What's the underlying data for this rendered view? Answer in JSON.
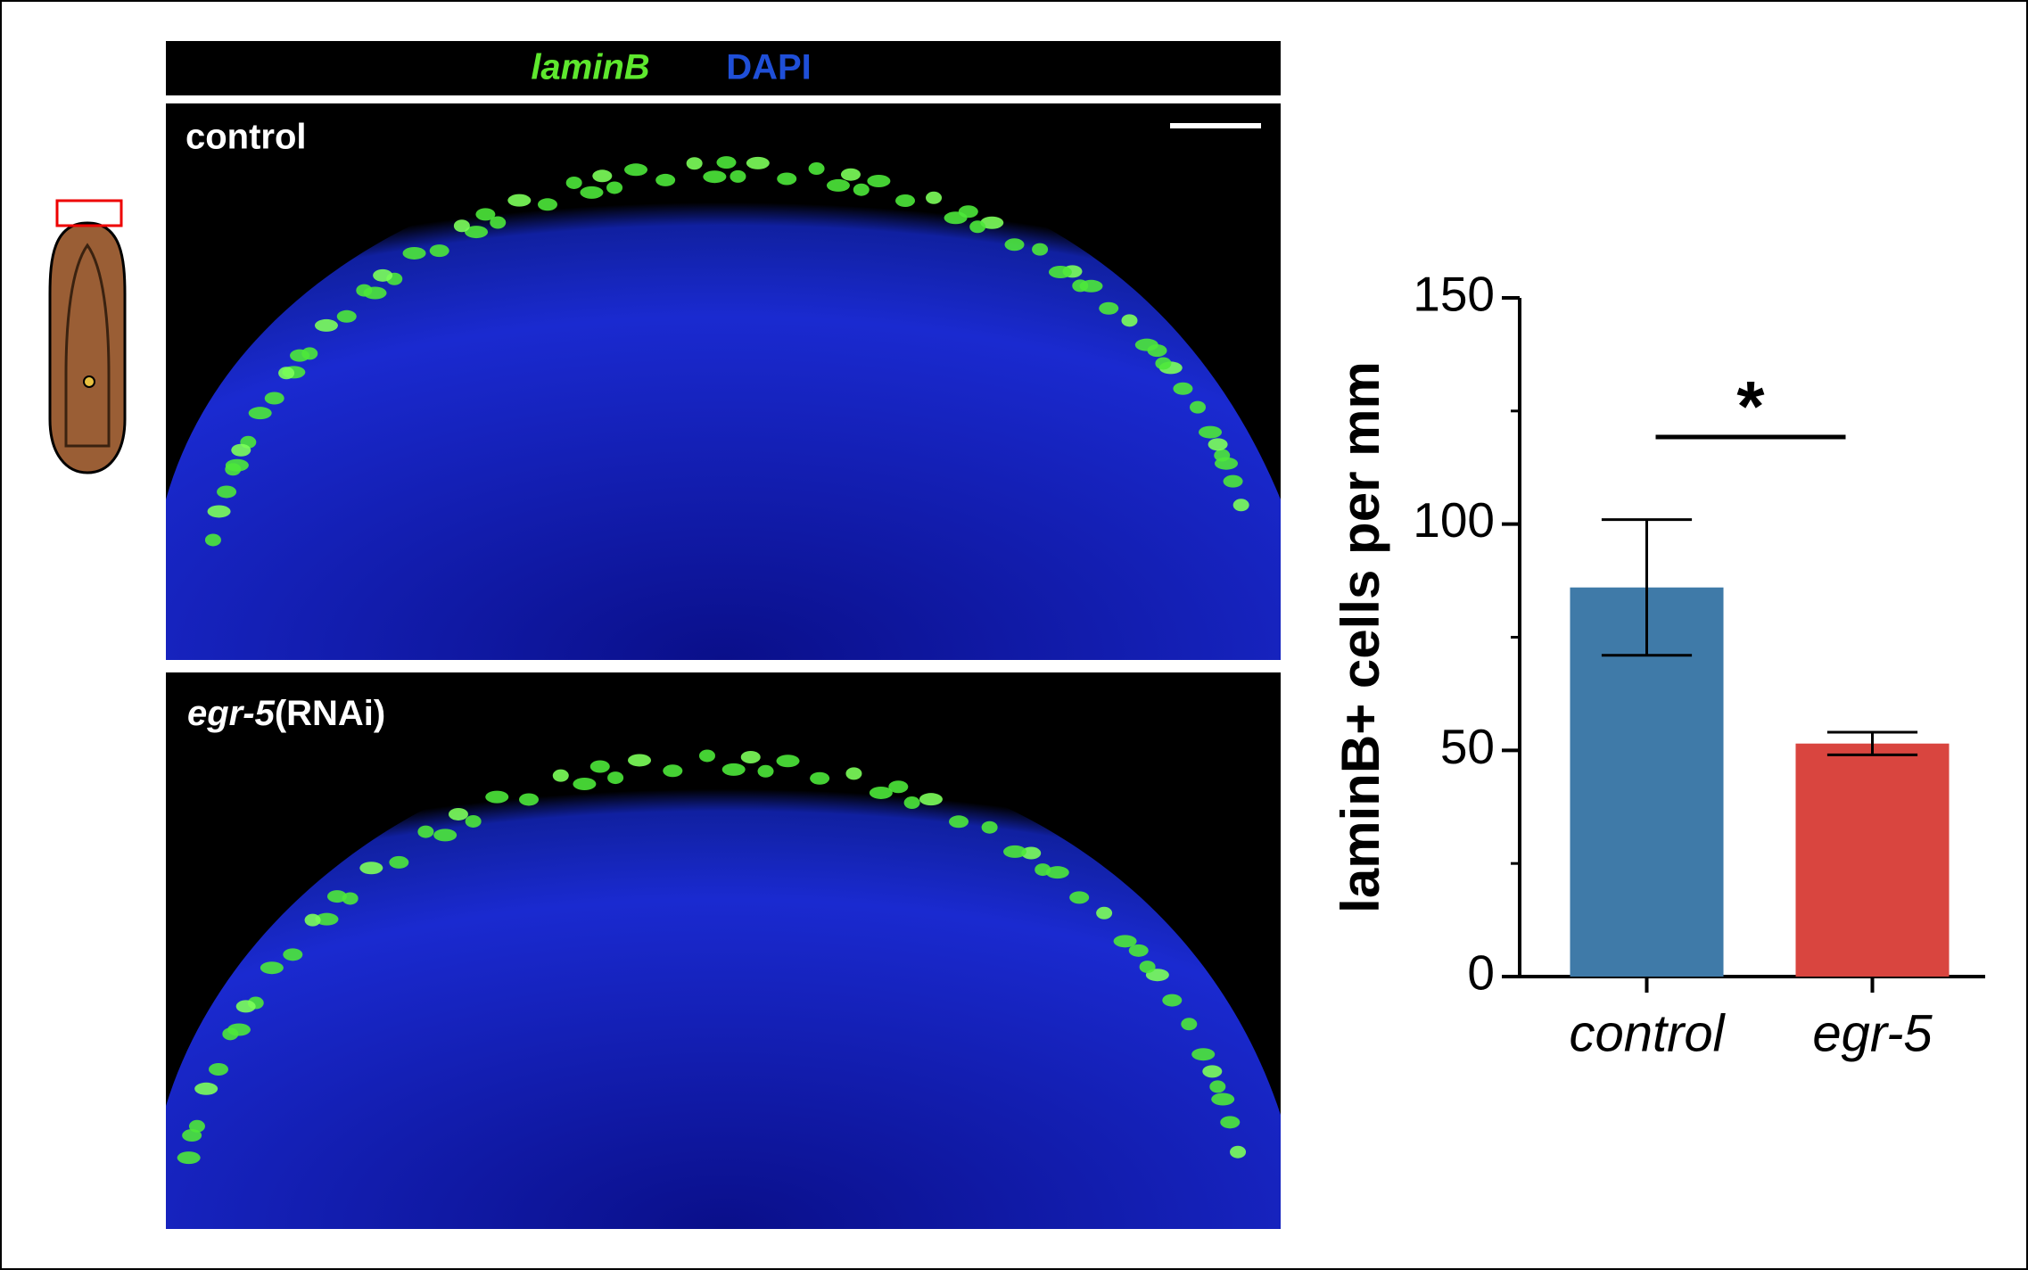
{
  "panels": {
    "stain_labels": [
      "laminB",
      "DAPI"
    ],
    "conditions": [
      "control",
      "egr-5",
      "(RNAi)"
    ]
  },
  "chart_data": {
    "type": "bar",
    "y_label": "laminB+ cells per mm",
    "categories": [
      "control",
      "egr-5"
    ],
    "values": [
      86,
      51.5
    ],
    "errors": [
      15,
      2.5
    ],
    "colors": [
      "#3f7aa8",
      "#d9453f"
    ],
    "ylim": [
      0,
      150
    ],
    "yticks": [
      0,
      50,
      100,
      150
    ],
    "significance": "*"
  }
}
